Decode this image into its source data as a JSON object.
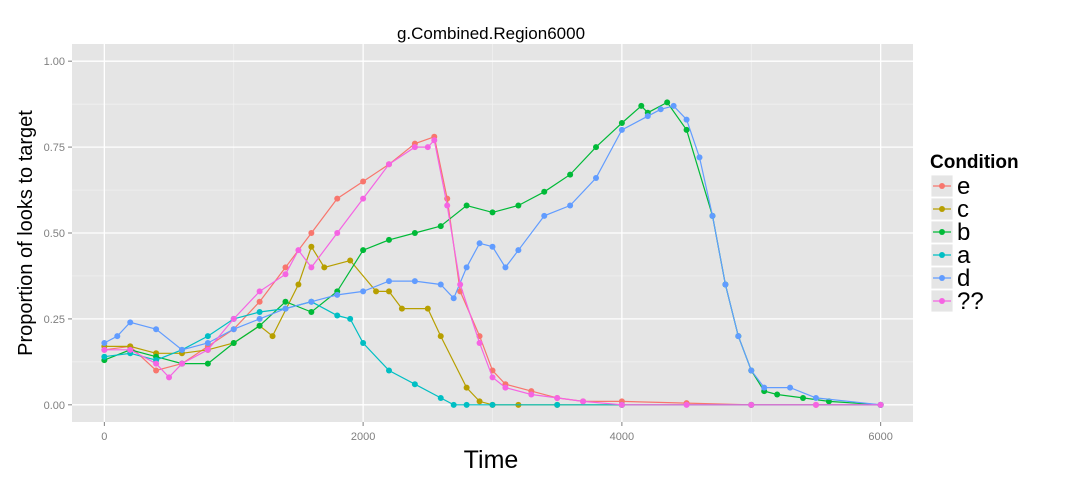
{
  "chart_data": {
    "type": "line",
    "title": "g.Combined.Region6000",
    "xlabel": "Time",
    "ylabel": "Proportion of looks to target",
    "xlim": [
      -250,
      6250
    ],
    "ylim": [
      -0.05,
      1.05
    ],
    "x_ticks": [
      0,
      2000,
      4000,
      6000
    ],
    "x_tick_labels": [
      "0",
      "2000",
      "4000",
      "6000"
    ],
    "y_ticks": [
      0,
      0.25,
      0.5,
      0.75,
      1.0
    ],
    "y_tick_labels": [
      "0.00",
      "0.25",
      "0.50",
      "0.75",
      "1.00"
    ],
    "grid": true,
    "legend": {
      "title": "Condition",
      "position": "right"
    },
    "series": [
      {
        "name": "e",
        "color": "#F8766D",
        "x": [
          0,
          200,
          400,
          600,
          800,
          1000,
          1200,
          1400,
          1600,
          1800,
          2000,
          2200,
          2400,
          2550,
          2650,
          2750,
          2900,
          3000,
          3100,
          3300,
          3500,
          3700,
          4000,
          4500,
          5000,
          5500,
          6000
        ],
        "y": [
          0.16,
          0.17,
          0.1,
          0.12,
          0.17,
          0.22,
          0.3,
          0.4,
          0.5,
          0.6,
          0.65,
          0.7,
          0.76,
          0.78,
          0.6,
          0.33,
          0.2,
          0.1,
          0.06,
          0.04,
          0.02,
          0.01,
          0.01,
          0.005,
          0.0,
          0.0,
          0.0
        ]
      },
      {
        "name": "c",
        "color": "#B79F00",
        "x": [
          0,
          200,
          400,
          600,
          800,
          1000,
          1200,
          1300,
          1500,
          1600,
          1700,
          1900,
          2100,
          2200,
          2300,
          2500,
          2600,
          2800,
          2900,
          3000,
          3200,
          3500,
          4000,
          5000,
          6000
        ],
        "y": [
          0.17,
          0.17,
          0.15,
          0.15,
          0.16,
          0.18,
          0.23,
          0.2,
          0.35,
          0.46,
          0.4,
          0.42,
          0.33,
          0.33,
          0.28,
          0.28,
          0.2,
          0.05,
          0.01,
          0.0,
          0.0,
          0.0,
          0.0,
          0.0,
          0.0
        ]
      },
      {
        "name": "b",
        "color": "#00BA38",
        "x": [
          0,
          200,
          400,
          600,
          800,
          1000,
          1200,
          1400,
          1600,
          1800,
          2000,
          2200,
          2400,
          2600,
          2800,
          3000,
          3200,
          3400,
          3600,
          3800,
          4000,
          4150,
          4200,
          4350,
          4500,
          4700,
          4800,
          4900,
          5000,
          5100,
          5200,
          5400,
          5600,
          6000
        ],
        "y": [
          0.13,
          0.16,
          0.14,
          0.12,
          0.12,
          0.18,
          0.23,
          0.3,
          0.27,
          0.33,
          0.45,
          0.48,
          0.5,
          0.52,
          0.58,
          0.56,
          0.58,
          0.62,
          0.67,
          0.75,
          0.82,
          0.87,
          0.85,
          0.88,
          0.8,
          0.55,
          0.35,
          0.2,
          0.1,
          0.04,
          0.03,
          0.02,
          0.01,
          0.0
        ]
      },
      {
        "name": "a",
        "color": "#00BFC4",
        "x": [
          0,
          200,
          400,
          600,
          800,
          1000,
          1200,
          1400,
          1600,
          1800,
          1900,
          2000,
          2200,
          2400,
          2600,
          2700,
          2800,
          3000,
          3500,
          4000,
          5000,
          6000
        ],
        "y": [
          0.14,
          0.15,
          0.13,
          0.16,
          0.2,
          0.25,
          0.27,
          0.28,
          0.3,
          0.26,
          0.25,
          0.18,
          0.1,
          0.06,
          0.02,
          0.0,
          0.0,
          0.0,
          0.0,
          0.0,
          0.0,
          0.0
        ]
      },
      {
        "name": "d",
        "color": "#619CFF",
        "x": [
          0,
          100,
          200,
          400,
          600,
          800,
          1000,
          1200,
          1400,
          1600,
          1800,
          2000,
          2200,
          2400,
          2600,
          2700,
          2800,
          2900,
          3000,
          3100,
          3200,
          3400,
          3600,
          3800,
          4000,
          4200,
          4300,
          4400,
          4500,
          4600,
          4700,
          4800,
          4900,
          5000,
          5100,
          5300,
          5500,
          6000
        ],
        "y": [
          0.18,
          0.2,
          0.24,
          0.22,
          0.16,
          0.18,
          0.22,
          0.25,
          0.28,
          0.3,
          0.32,
          0.33,
          0.36,
          0.36,
          0.35,
          0.31,
          0.4,
          0.47,
          0.46,
          0.4,
          0.45,
          0.55,
          0.58,
          0.66,
          0.8,
          0.84,
          0.86,
          0.87,
          0.83,
          0.72,
          0.55,
          0.35,
          0.2,
          0.1,
          0.05,
          0.05,
          0.02,
          0.0
        ]
      },
      {
        "name": "??",
        "color": "#F564E3",
        "x": [
          0,
          200,
          400,
          500,
          600,
          800,
          1000,
          1200,
          1400,
          1500,
          1600,
          1800,
          2000,
          2200,
          2400,
          2500,
          2550,
          2650,
          2750,
          2900,
          3000,
          3100,
          3300,
          3500,
          3700,
          4000,
          4500,
          5000,
          5500,
          6000
        ],
        "y": [
          0.16,
          0.16,
          0.12,
          0.08,
          0.12,
          0.16,
          0.25,
          0.33,
          0.38,
          0.45,
          0.4,
          0.5,
          0.6,
          0.7,
          0.75,
          0.75,
          0.77,
          0.58,
          0.35,
          0.18,
          0.08,
          0.05,
          0.03,
          0.02,
          0.01,
          0.0,
          0.0,
          0.0,
          0.0,
          0.0
        ]
      }
    ]
  }
}
